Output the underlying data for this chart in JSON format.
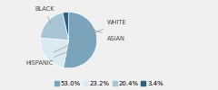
{
  "labels": [
    "HISPANIC",
    "WHITE",
    "BLACK",
    "ASIAN"
  ],
  "values": [
    53.0,
    23.2,
    20.4,
    3.4
  ],
  "colors": [
    "#7aa4be",
    "#daeaf3",
    "#a8c5d6",
    "#2e5f7a"
  ],
  "legend_labels": [
    "53.0%",
    "23.2%",
    "20.4%",
    "3.4%"
  ],
  "legend_colors": [
    "#7aa4be",
    "#daeaf3",
    "#a8c5d6",
    "#2e5f7a"
  ],
  "label_fontsize": 4.8,
  "legend_fontsize": 5.0,
  "startangle": 90,
  "bg_color": "#f0f0f0"
}
